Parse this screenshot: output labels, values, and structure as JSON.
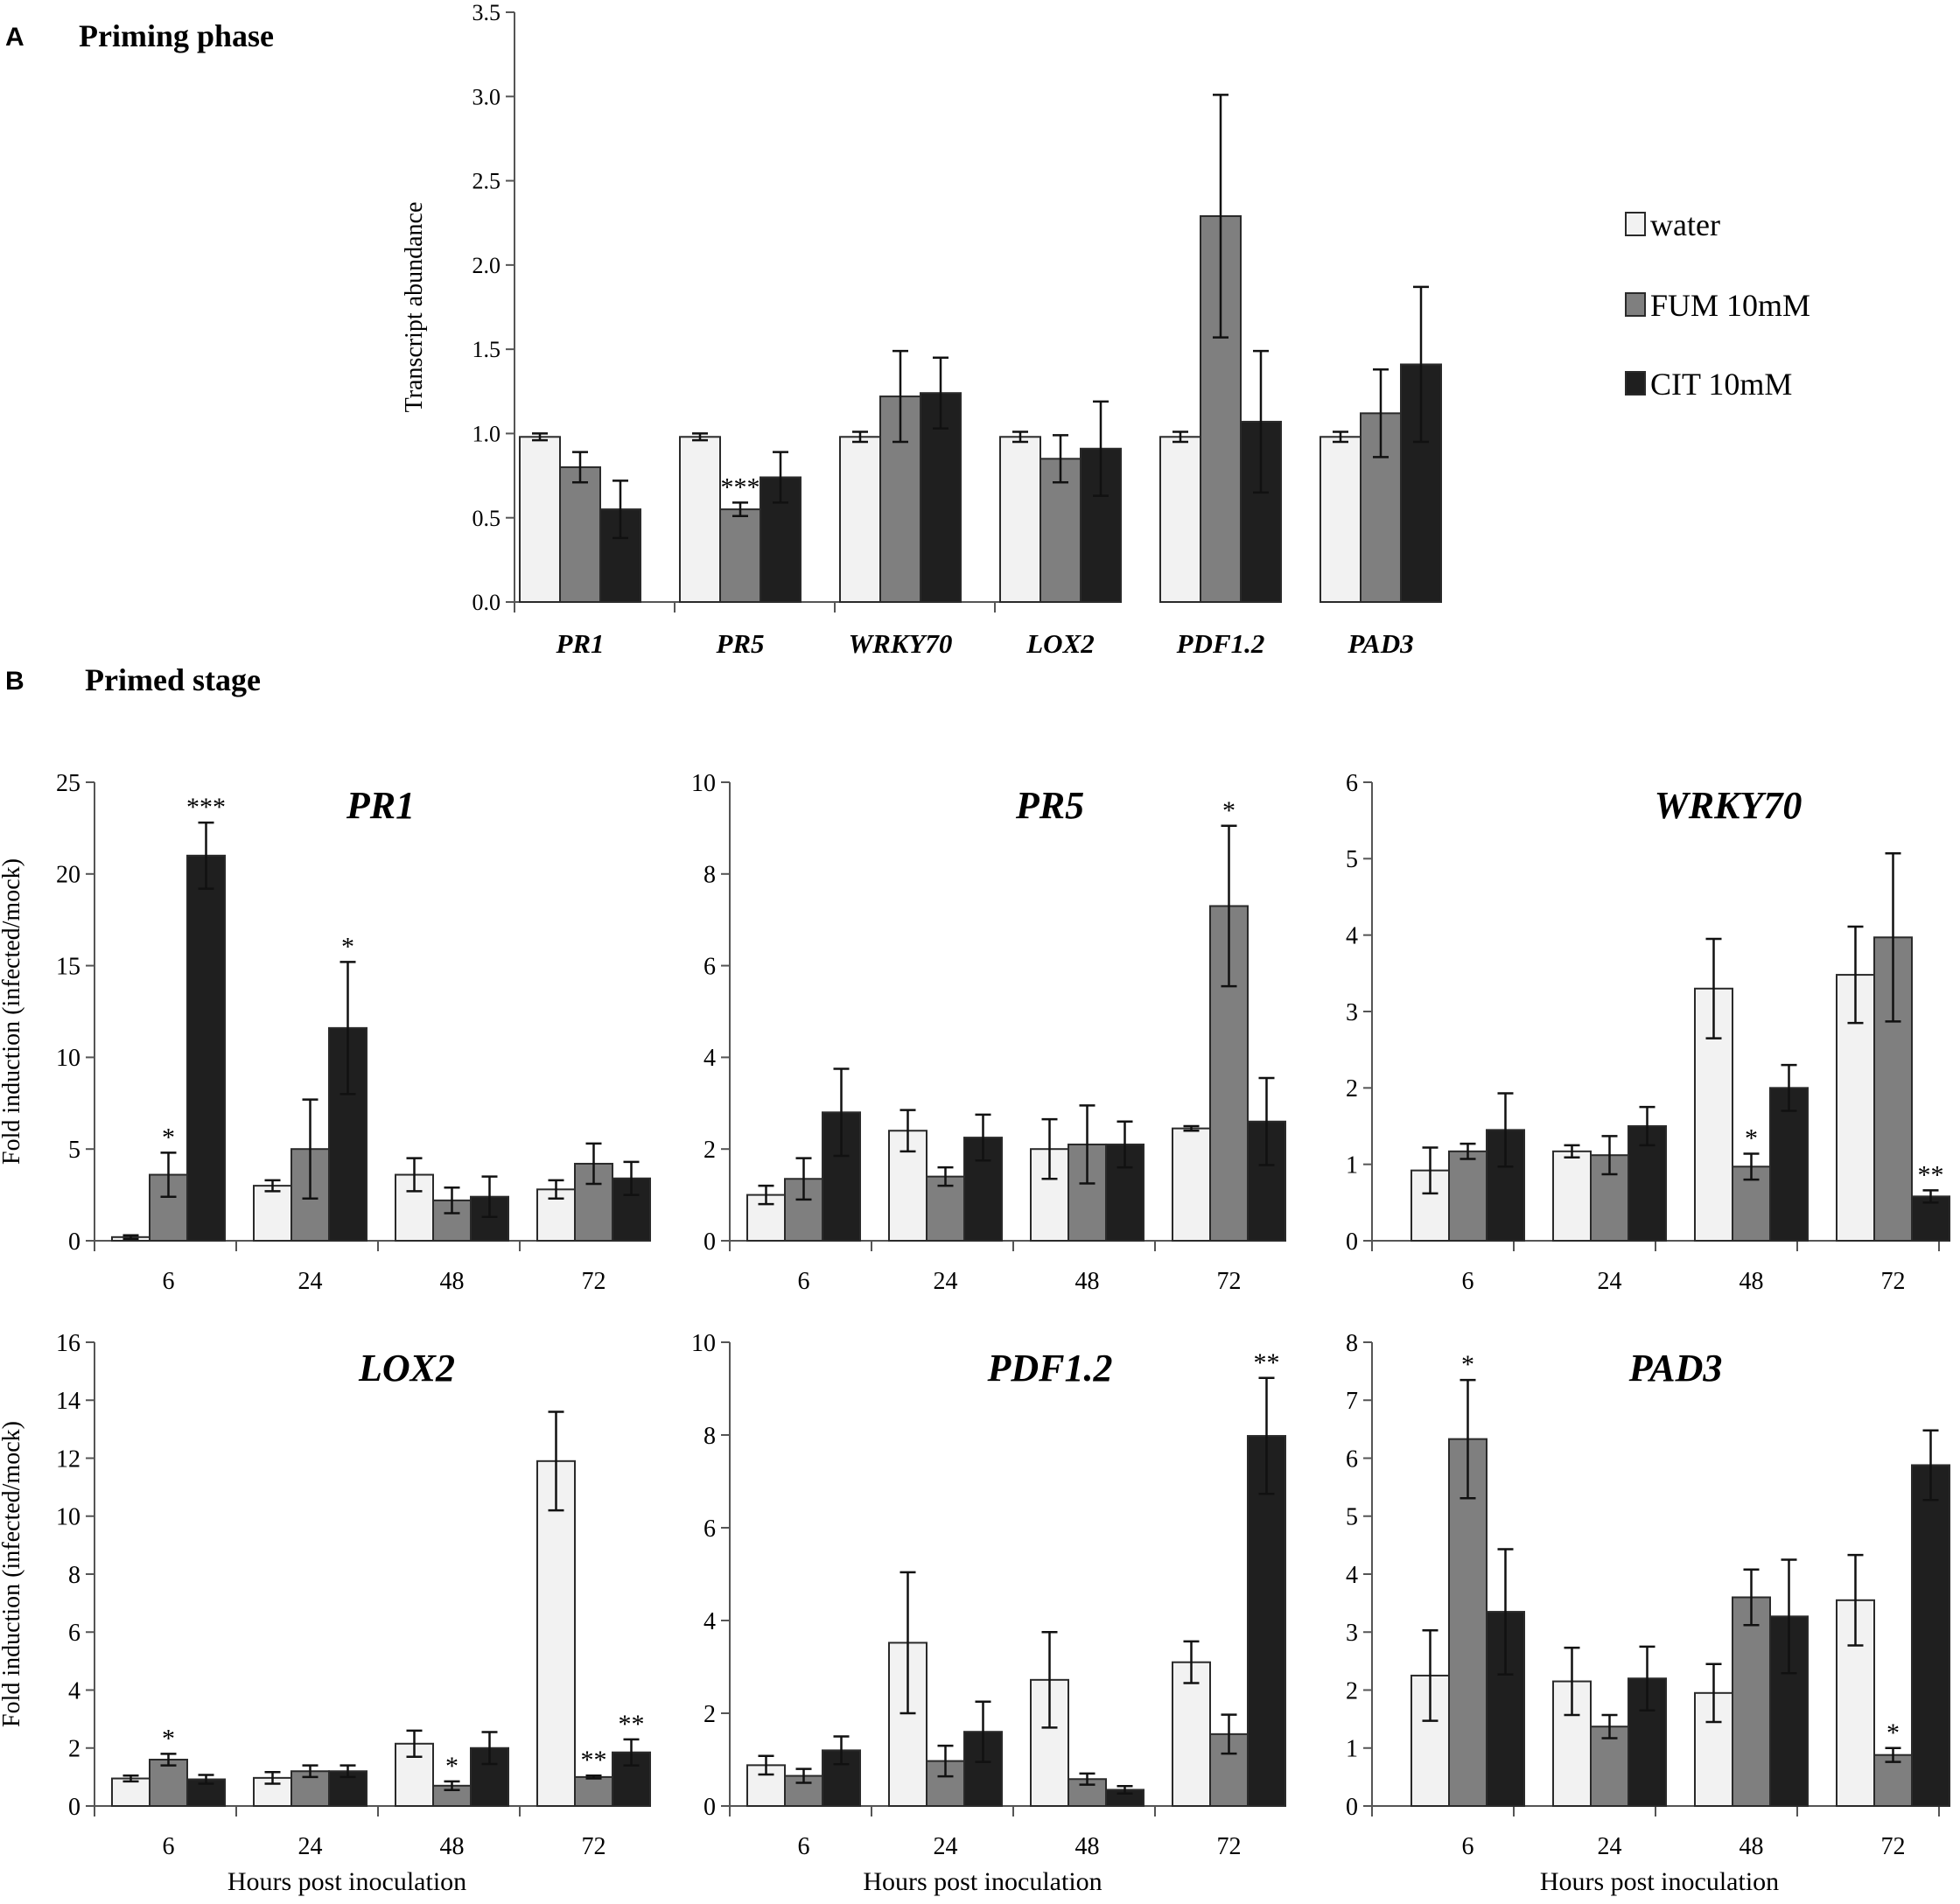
{
  "panels": {
    "a": {
      "letter": "A",
      "title": "Priming phase"
    },
    "b": {
      "letter": "B",
      "title": "Primed stage"
    }
  },
  "colors": {
    "water": "#f2f2f2",
    "fum": "#7f7f7f",
    "cit": "#1f1f1f",
    "axis": "#555555",
    "text": "#000000"
  },
  "chart_data": [
    {
      "id": "priming",
      "type": "bar",
      "title": "",
      "ylabel": "Transcript abundance",
      "xlabel": "",
      "ylim": [
        0,
        3.5
      ],
      "yticks": [
        "0.0",
        "0.5",
        "1.0",
        "1.5",
        "2.0",
        "2.5",
        "3.0",
        "3.5"
      ],
      "categories": [
        "PR1",
        "PR5",
        "WRKY70",
        "LOX2",
        "PDF1.2",
        "PAD3"
      ],
      "legend": [
        "water",
        "FUM 10mM",
        "CIT 10mM"
      ],
      "legend_position": "right",
      "series": [
        {
          "name": "water",
          "values": [
            0.98,
            0.98,
            0.98,
            0.98,
            0.98,
            0.98
          ],
          "errors": [
            0.02,
            0.02,
            0.03,
            0.03,
            0.03,
            0.03
          ]
        },
        {
          "name": "FUM 10mM",
          "values": [
            0.8,
            0.55,
            1.22,
            0.85,
            2.29,
            1.12
          ],
          "errors": [
            0.09,
            0.04,
            0.27,
            0.14,
            0.72,
            0.26
          ]
        },
        {
          "name": "CIT 10mM",
          "values": [
            0.55,
            0.74,
            1.24,
            0.91,
            1.07,
            1.41
          ],
          "errors": [
            0.17,
            0.15,
            0.21,
            0.28,
            0.42,
            0.46
          ]
        }
      ],
      "annotations": [
        {
          "category": "PR5",
          "series": "FUM 10mM",
          "text": "***"
        }
      ]
    },
    {
      "id": "pr1",
      "type": "bar",
      "title": "PR1",
      "ylabel": "Fold induction (infected/mock)",
      "xlabel": "",
      "ylim": [
        0,
        25
      ],
      "yticks": [
        "0",
        "5",
        "10",
        "15",
        "20",
        "25"
      ],
      "categories": [
        "6",
        "24",
        "48",
        "72"
      ],
      "series": [
        {
          "name": "water",
          "values": [
            0.2,
            3.0,
            3.6,
            2.8
          ],
          "errors": [
            0.1,
            0.3,
            0.9,
            0.5
          ]
        },
        {
          "name": "FUM 10mM",
          "values": [
            3.6,
            5.0,
            2.2,
            4.2
          ],
          "errors": [
            1.2,
            2.7,
            0.7,
            1.1
          ]
        },
        {
          "name": "CIT 10mM",
          "values": [
            21.0,
            11.6,
            2.4,
            3.4
          ],
          "errors": [
            1.8,
            3.6,
            1.1,
            0.9
          ]
        }
      ],
      "annotations": [
        {
          "category": "6",
          "series": "FUM 10mM",
          "text": "*"
        },
        {
          "category": "6",
          "series": "CIT 10mM",
          "text": "***"
        },
        {
          "category": "24",
          "series": "CIT 10mM",
          "text": "*"
        }
      ]
    },
    {
      "id": "pr5",
      "type": "bar",
      "title": "PR5",
      "ylabel": "",
      "xlabel": "",
      "ylim": [
        0,
        10
      ],
      "yticks": [
        "0",
        "2",
        "4",
        "6",
        "8",
        "10"
      ],
      "categories": [
        "6",
        "24",
        "48",
        "72"
      ],
      "series": [
        {
          "name": "water",
          "values": [
            1.0,
            2.4,
            2.0,
            2.45
          ],
          "errors": [
            0.2,
            0.45,
            0.65,
            0.05
          ]
        },
        {
          "name": "FUM 10mM",
          "values": [
            1.35,
            1.4,
            2.1,
            7.3
          ],
          "errors": [
            0.45,
            0.2,
            0.85,
            1.75
          ]
        },
        {
          "name": "CIT 10mM",
          "values": [
            2.8,
            2.25,
            2.1,
            2.6
          ],
          "errors": [
            0.95,
            0.5,
            0.5,
            0.95
          ]
        }
      ],
      "annotations": [
        {
          "category": "72",
          "series": "FUM 10mM",
          "text": "*"
        }
      ]
    },
    {
      "id": "wrky70",
      "type": "bar",
      "title": "WRKY70",
      "ylabel": "",
      "xlabel": "",
      "ylim": [
        0,
        6
      ],
      "yticks": [
        "0",
        "1",
        "2",
        "3",
        "4",
        "5",
        "6"
      ],
      "categories": [
        "6",
        "24",
        "48",
        "72"
      ],
      "series": [
        {
          "name": "water",
          "values": [
            0.92,
            1.17,
            3.3,
            3.48
          ],
          "errors": [
            0.3,
            0.08,
            0.65,
            0.63
          ]
        },
        {
          "name": "FUM 10mM",
          "values": [
            1.17,
            1.12,
            0.97,
            3.97
          ],
          "errors": [
            0.1,
            0.25,
            0.17,
            1.1
          ]
        },
        {
          "name": "CIT 10mM",
          "values": [
            1.45,
            1.5,
            2.0,
            0.58
          ],
          "errors": [
            0.48,
            0.25,
            0.3,
            0.08
          ]
        }
      ],
      "annotations": [
        {
          "category": "48",
          "series": "FUM 10mM",
          "text": "*"
        },
        {
          "category": "72",
          "series": "CIT 10mM",
          "text": "**"
        }
      ]
    },
    {
      "id": "lox2",
      "type": "bar",
      "title": "LOX2",
      "ylabel": "Fold induction (infected/mock)",
      "xlabel": "Hours post inoculation",
      "ylim": [
        0,
        16
      ],
      "yticks": [
        "0",
        "2",
        "4",
        "6",
        "8",
        "10",
        "12",
        "14",
        "16"
      ],
      "categories": [
        "6",
        "24",
        "48",
        "72"
      ],
      "series": [
        {
          "name": "water",
          "values": [
            0.95,
            0.97,
            2.15,
            11.9
          ],
          "errors": [
            0.1,
            0.2,
            0.45,
            1.7
          ]
        },
        {
          "name": "FUM 10mM",
          "values": [
            1.6,
            1.2,
            0.7,
            1.0
          ],
          "errors": [
            0.2,
            0.2,
            0.15,
            0.05
          ]
        },
        {
          "name": "CIT 10mM",
          "values": [
            0.92,
            1.2,
            2.0,
            1.85
          ],
          "errors": [
            0.15,
            0.2,
            0.55,
            0.45
          ]
        }
      ],
      "annotations": [
        {
          "category": "6",
          "series": "FUM 10mM",
          "text": "*"
        },
        {
          "category": "48",
          "series": "FUM 10mM",
          "text": "*"
        },
        {
          "category": "72",
          "series": "FUM 10mM",
          "text": "**"
        },
        {
          "category": "72",
          "series": "CIT 10mM",
          "text": "**"
        }
      ]
    },
    {
      "id": "pdf12",
      "type": "bar",
      "title": "PDF1.2",
      "ylabel": "",
      "xlabel": "Hours post inoculation",
      "ylim": [
        0,
        10
      ],
      "yticks": [
        "0",
        "2",
        "4",
        "6",
        "8",
        "10"
      ],
      "categories": [
        "6",
        "24",
        "48",
        "72"
      ],
      "series": [
        {
          "name": "water",
          "values": [
            0.88,
            3.52,
            2.72,
            3.1
          ],
          "errors": [
            0.2,
            1.52,
            1.03,
            0.45
          ]
        },
        {
          "name": "FUM 10mM",
          "values": [
            0.65,
            0.97,
            0.58,
            1.55
          ],
          "errors": [
            0.15,
            0.33,
            0.12,
            0.42
          ]
        },
        {
          "name": "CIT 10mM",
          "values": [
            1.2,
            1.6,
            0.35,
            7.98
          ],
          "errors": [
            0.3,
            0.65,
            0.08,
            1.25
          ]
        }
      ],
      "annotations": [
        {
          "category": "72",
          "series": "CIT 10mM",
          "text": "**"
        }
      ]
    },
    {
      "id": "pad3",
      "type": "bar",
      "title": "PAD3",
      "ylabel": "",
      "xlabel": "Hours post inoculation",
      "ylim": [
        0,
        8
      ],
      "yticks": [
        "0",
        "1",
        "2",
        "3",
        "4",
        "5",
        "6",
        "7",
        "8"
      ],
      "categories": [
        "6",
        "24",
        "48",
        "72"
      ],
      "series": [
        {
          "name": "water",
          "values": [
            2.25,
            2.15,
            1.95,
            3.55
          ],
          "errors": [
            0.78,
            0.58,
            0.5,
            0.78
          ]
        },
        {
          "name": "FUM 10mM",
          "values": [
            6.33,
            1.37,
            3.6,
            0.88
          ],
          "errors": [
            1.02,
            0.2,
            0.48,
            0.12
          ]
        },
        {
          "name": "CIT 10mM",
          "values": [
            3.35,
            2.2,
            3.27,
            5.88
          ],
          "errors": [
            1.08,
            0.55,
            0.98,
            0.6
          ]
        }
      ],
      "annotations": [
        {
          "category": "6",
          "series": "FUM 10mM",
          "text": "*"
        },
        {
          "category": "72",
          "series": "FUM 10mM",
          "text": "*"
        }
      ]
    }
  ]
}
